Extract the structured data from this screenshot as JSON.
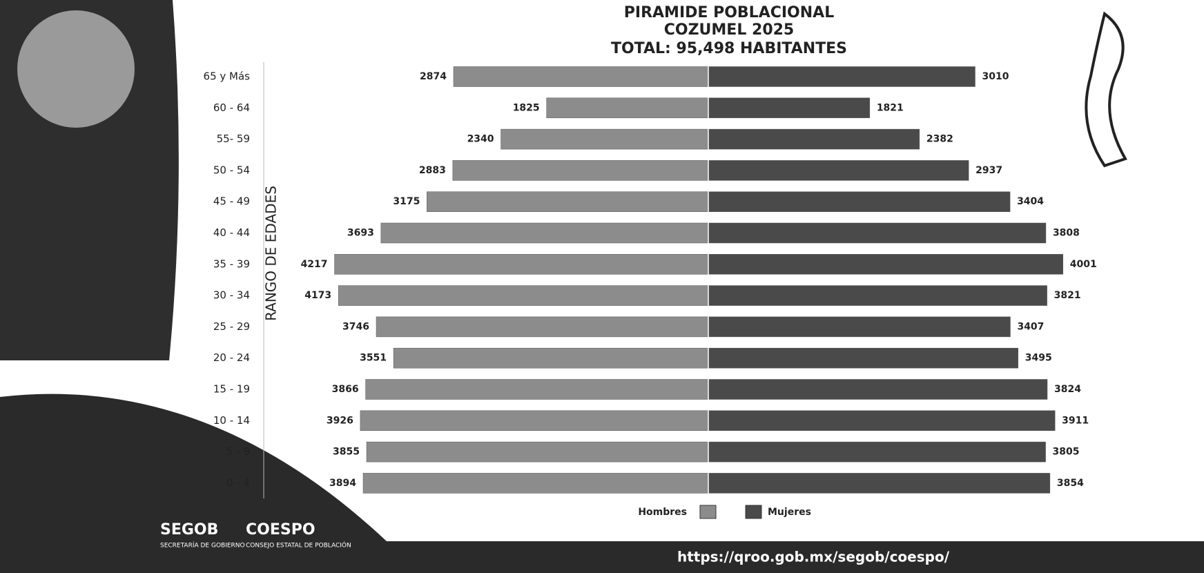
{
  "chart_data": {
    "type": "pyramid",
    "title": "PIRAMIDE POBLACIONAL",
    "subtitle": "COZUMEL 2025",
    "total": "TOTAL: 95,498 HABITANTES",
    "y_label": "RANGO DE EDADES",
    "categories": [
      "65 y Más",
      "60 - 64",
      "55- 59",
      "50 - 54",
      "45 - 49",
      "40 - 44",
      "35 - 39",
      "30 - 34",
      "25 - 29",
      "20 - 24",
      "15 - 19",
      "10 - 14",
      "5 - 9",
      "0 - 4"
    ],
    "series": [
      {
        "name": "Hombres",
        "color": "#8c8c8c",
        "side": "left",
        "values": [
          2874,
          1825,
          2340,
          2883,
          3175,
          3693,
          4217,
          4173,
          3746,
          3551,
          3866,
          3926,
          3855,
          3894
        ]
      },
      {
        "name": "Mujeres",
        "color": "#4a4a4a",
        "side": "right",
        "values": [
          3010,
          1821,
          2382,
          2937,
          3404,
          3808,
          4001,
          3821,
          3407,
          3495,
          3824,
          3911,
          3805,
          3854
        ]
      }
    ],
    "xlim": [
      0,
      5000
    ]
  },
  "footer": {
    "segob": "SEGOB",
    "segob_sub": "SECRETARÍA DE GOBIERNO",
    "coespo": "COESPO",
    "coespo_sub": "CONSEJO ESTATAL DE POBLACIÓN",
    "url": "https://qroo.gob.mx/segob/coespo/"
  }
}
